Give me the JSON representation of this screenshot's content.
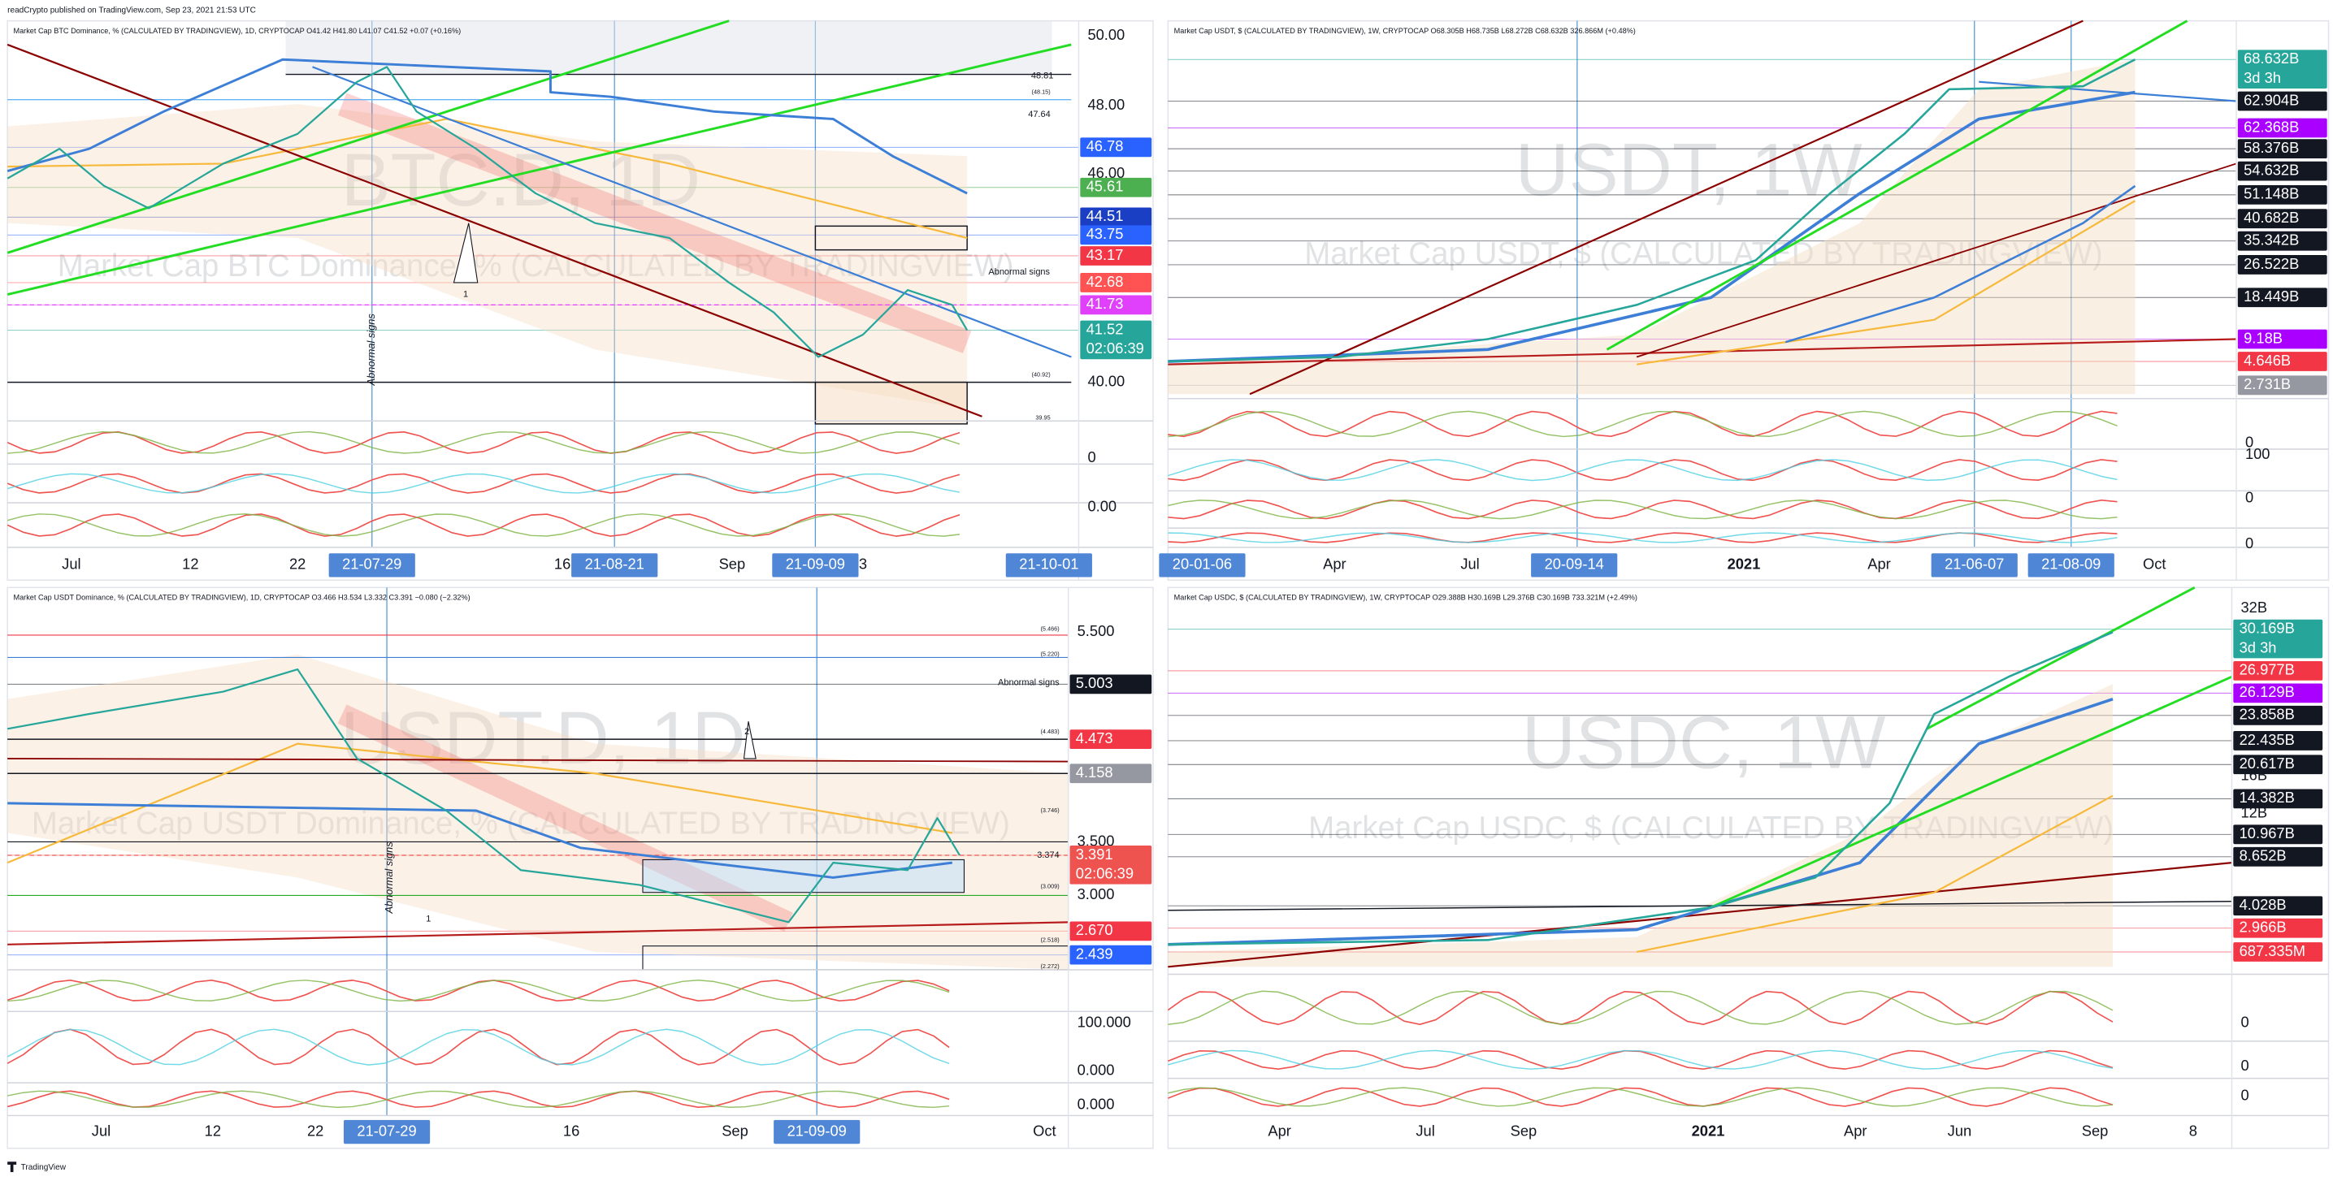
{
  "header": "readCrypto published on TradingView.com, Sep 23, 2021 21:53 UTC",
  "footer": "TradingView",
  "date_tag_color": "#4f87d6",
  "panels": [
    {
      "legend": "Market Cap BTC Dominance, % (CALCULATED BY TRADINGVIEW), 1D, CRYPTOCAP  O41.42 H41.80 L41.07 C41.52 +0.07 (+0.16%)",
      "watermark_symbol": "BTC.D, 1D",
      "watermark_name": "Market Cap BTC Dominance, % (CALCULATED BY TRADINGVIEW)",
      "price_tags": [
        {
          "text": "46.78",
          "color": "#2962ff"
        },
        {
          "text": "45.61",
          "color": "#4caf50"
        },
        {
          "text": "44.51",
          "color": "#1a3fc4"
        },
        {
          "text": "43.75",
          "color": "#2962ff"
        },
        {
          "text": "43.17",
          "color": "#f23645"
        },
        {
          "text": "42.68",
          "color": "#ff5252"
        },
        {
          "text": "41.73",
          "color": "#e040fb"
        },
        {
          "text": "41.52",
          "sub": "02:06:39",
          "color": "#26a69a"
        }
      ],
      "axis_labels": [
        "50.00",
        "48.00",
        "46.00",
        "40.00",
        "0",
        "0.00"
      ],
      "time_labels": [
        "Jul",
        "12",
        "22",
        "16",
        "Sep",
        "3"
      ],
      "date_tags": [
        "21-07-29",
        "21-08-21",
        "21-09-09",
        "21-10-01"
      ],
      "annotations": [
        "48.81",
        "(48.15)",
        "47.64",
        "Abnormal signs",
        "Abnormal signs",
        "1",
        "(40.92)",
        "39.95"
      ]
    },
    {
      "legend": "Market Cap USDT, $ (CALCULATED BY TRADINGVIEW), 1W, CRYPTOCAP  O68.305B H68.735B L68.272B C68.632B 326.866M (+0.48%)",
      "watermark_symbol": "USDT, 1W",
      "watermark_name": "Market Cap USDT, $ (CALCULATED BY TRADINGVIEW)",
      "price_tags": [
        {
          "text": "68.632B",
          "sub": "3d 3h",
          "color": "#26a69a"
        },
        {
          "text": "62.904B",
          "color": "#131722"
        },
        {
          "text": "62.368B",
          "color": "#aa00ff"
        },
        {
          "text": "58.376B",
          "color": "#131722"
        },
        {
          "text": "54.632B",
          "color": "#131722"
        },
        {
          "text": "51.148B",
          "color": "#131722"
        },
        {
          "text": "40.682B",
          "color": "#131722"
        },
        {
          "text": "35.342B",
          "color": "#131722"
        },
        {
          "text": "26.522B",
          "color": "#131722"
        },
        {
          "text": "18.449B",
          "color": "#131722"
        },
        {
          "text": "9.18B",
          "color": "#aa00ff"
        },
        {
          "text": "4.646B",
          "color": "#f23645"
        },
        {
          "text": "2.731B",
          "color": "#9598a1"
        }
      ],
      "axis_labels": [
        "0",
        "100",
        "0",
        "0"
      ],
      "time_labels": [
        "Apr",
        "Jul",
        "2021",
        "Apr",
        "Oct"
      ],
      "date_tags": [
        "20-01-06",
        "20-09-14",
        "21-06-07",
        "21-08-09"
      ],
      "annotations": []
    },
    {
      "legend": "Market Cap USDT Dominance, % (CALCULATED BY TRADINGVIEW), 1D, CRYPTOCAP  O3.466 H3.534 L3.332 C3.391 −0.080 (−2.32%)",
      "watermark_symbol": "USDT.D, 1D",
      "watermark_name": "Market Cap USDT Dominance, % (CALCULATED BY TRADINGVIEW)",
      "price_tags": [
        {
          "text": "5.003",
          "color": "#131722"
        },
        {
          "text": "4.473",
          "color": "#f23645"
        },
        {
          "text": "4.158",
          "color": "#9598a1"
        },
        {
          "text": "3.391",
          "sub": "02:06:39",
          "color": "#ef5350"
        },
        {
          "text": "2.670",
          "color": "#f23645"
        },
        {
          "text": "2.439",
          "color": "#2962ff"
        }
      ],
      "axis_labels": [
        "5.500",
        "3.500",
        "3.000",
        "100.000",
        "0.000",
        "0.000"
      ],
      "time_labels": [
        "Jul",
        "12",
        "22",
        "16",
        "Sep",
        "Oct"
      ],
      "date_tags": [
        "21-07-29",
        "21-09-09"
      ],
      "annotations": [
        "(5.466)",
        "(5.220)",
        "Abnormal signs",
        "(4.483)",
        "(3.746)",
        "3.374",
        "(3.009)",
        "(2.518)",
        "(2.272)",
        "2",
        "1",
        "Abnormal signs"
      ]
    },
    {
      "legend": "Market Cap USDC, $ (CALCULATED BY TRADINGVIEW), 1W, CRYPTOCAP  O29.388B H30.169B L29.376B C30.169B 733.321M (+2.49%)",
      "watermark_symbol": "USDC, 1W",
      "watermark_name": "Market Cap USDC, $ (CALCULATED BY TRADINGVIEW)",
      "price_tags": [
        {
          "text": "30.169B",
          "sub": "3d 3h",
          "color": "#26a69a"
        },
        {
          "text": "26.977B",
          "color": "#f23645"
        },
        {
          "text": "26.129B",
          "color": "#aa00ff"
        },
        {
          "text": "23.858B",
          "color": "#131722"
        },
        {
          "text": "22.435B",
          "color": "#131722"
        },
        {
          "text": "20.617B",
          "color": "#131722"
        },
        {
          "text": "14.382B",
          "color": "#131722"
        },
        {
          "text": "10.967B",
          "color": "#131722"
        },
        {
          "text": "8.652B",
          "color": "#131722"
        },
        {
          "text": "4.028B",
          "color": "#131722"
        },
        {
          "text": "2.966B",
          "color": "#f23645"
        },
        {
          "text": "687.335M",
          "color": "#f23645"
        }
      ],
      "axis_labels": [
        "32B",
        "16B",
        "12B",
        "0",
        "0",
        "0"
      ],
      "time_labels": [
        "Apr",
        "Jul",
        "Sep",
        "2021",
        "Apr",
        "Jun",
        "Sep",
        "8"
      ],
      "date_tags": [],
      "annotations": []
    }
  ]
}
